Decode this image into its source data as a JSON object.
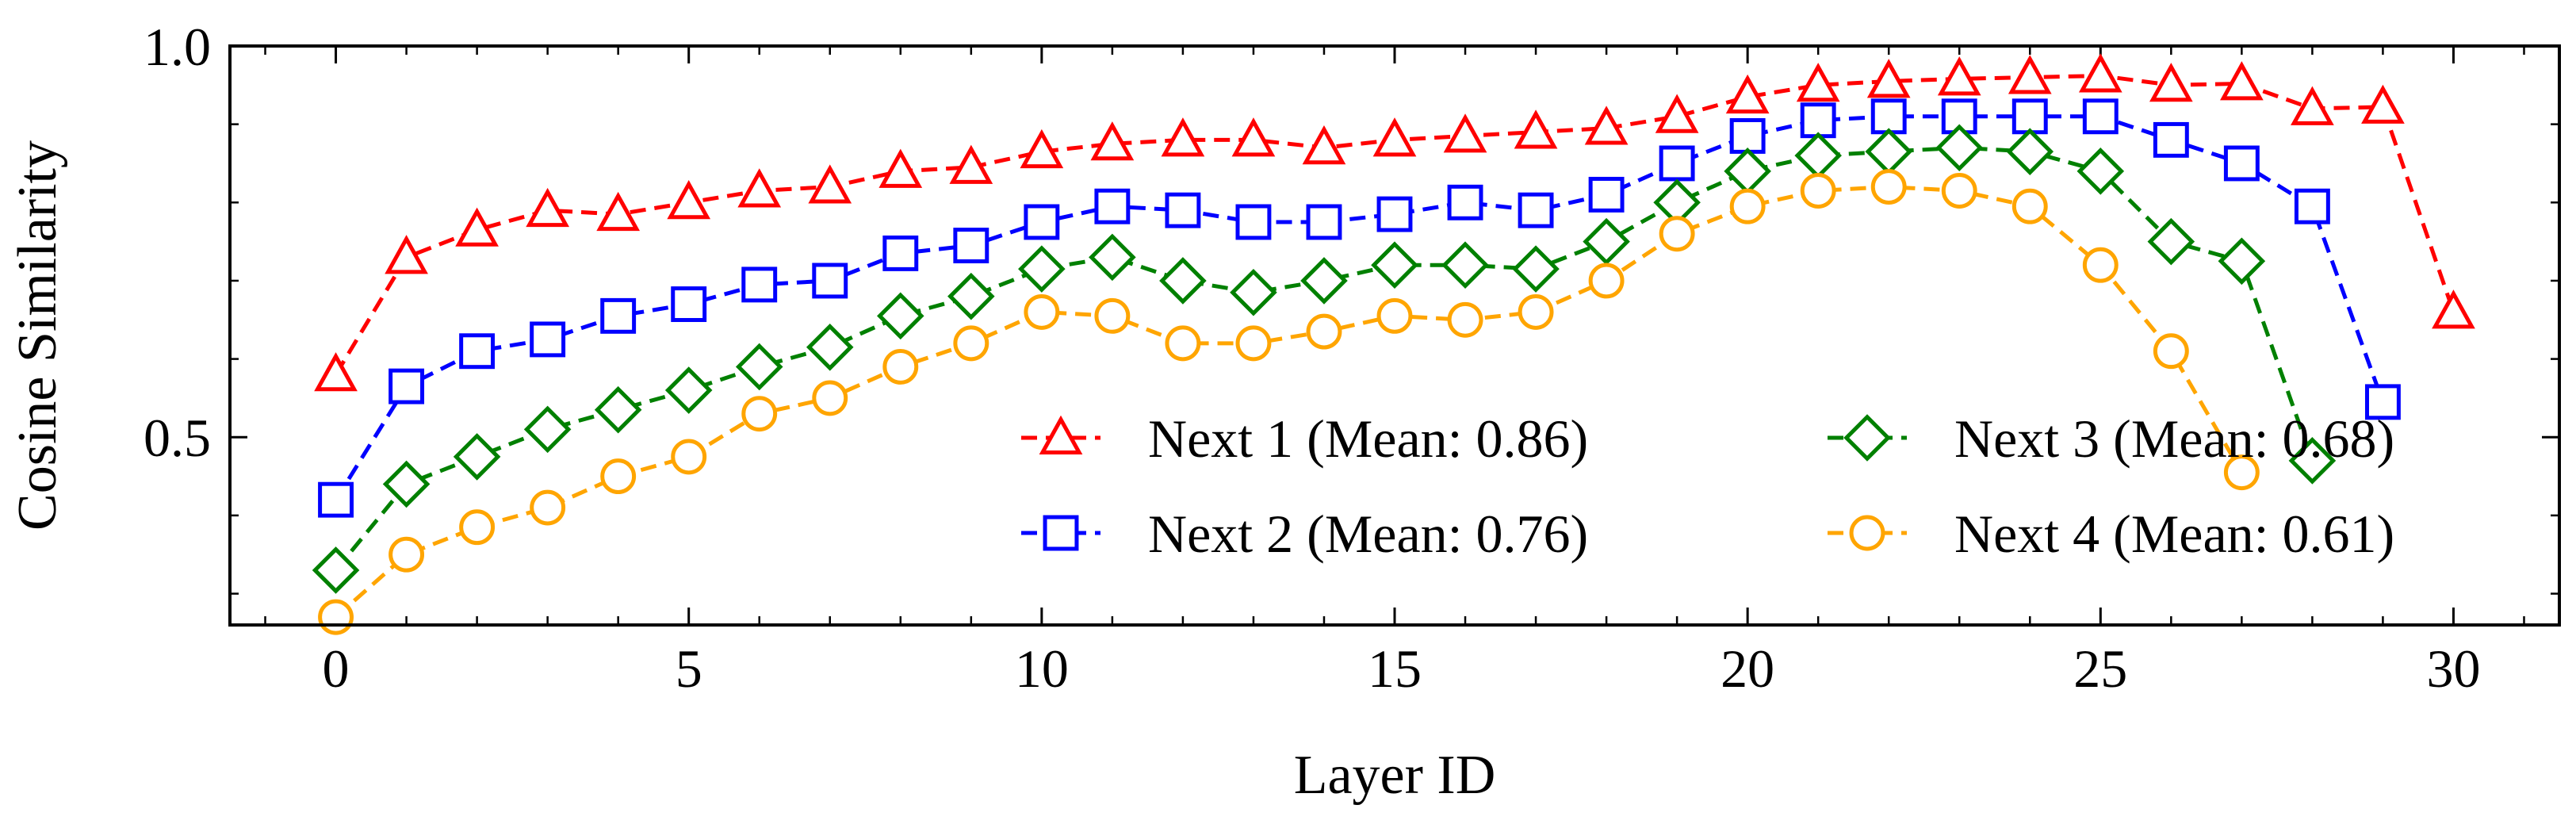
{
  "chart_data": {
    "type": "line",
    "title": "",
    "xlabel": "Layer ID",
    "ylabel": "Cosine Similarity",
    "xlim": [
      -1.5,
      31.5
    ],
    "ylim": [
      0.26,
      1.0
    ],
    "xticks": [
      0,
      5,
      10,
      15,
      20,
      25,
      30
    ],
    "xtick_labels": [
      "0",
      "5",
      "10",
      "15",
      "20",
      "25",
      "30"
    ],
    "yticks": [
      0.5,
      1.0
    ],
    "ytick_labels": [
      "0.5",
      "1.0"
    ],
    "legend_position": "lower-right",
    "legend_columns": 2,
    "series": [
      {
        "name": "Next 1 (Mean: 0.86)",
        "color": "#ff0000",
        "marker": "triangle",
        "x": [
          0,
          1,
          2,
          3,
          4,
          5,
          6,
          7,
          8,
          9,
          10,
          11,
          12,
          13,
          14,
          15,
          16,
          17,
          18,
          19,
          20,
          21,
          22,
          23,
          24,
          25,
          26,
          27,
          28,
          29,
          30
        ],
        "values": [
          0.58,
          0.73,
          0.765,
          0.79,
          0.785,
          0.8,
          0.815,
          0.82,
          0.84,
          0.845,
          0.865,
          0.875,
          0.88,
          0.88,
          0.87,
          0.88,
          0.885,
          0.89,
          0.895,
          0.91,
          0.935,
          0.95,
          0.955,
          0.958,
          0.96,
          0.962,
          0.95,
          0.952,
          0.92,
          0.922,
          0.66
        ]
      },
      {
        "name": "Next 2 (Mean: 0.76)",
        "color": "#0000ff",
        "marker": "square",
        "x": [
          0,
          1,
          2,
          3,
          4,
          5,
          6,
          7,
          8,
          9,
          10,
          11,
          12,
          13,
          14,
          15,
          16,
          17,
          18,
          19,
          20,
          21,
          22,
          23,
          24,
          25,
          26,
          27,
          28,
          29
        ],
        "values": [
          0.42,
          0.565,
          0.61,
          0.625,
          0.655,
          0.67,
          0.695,
          0.7,
          0.735,
          0.745,
          0.775,
          0.795,
          0.79,
          0.775,
          0.775,
          0.785,
          0.8,
          0.79,
          0.81,
          0.85,
          0.885,
          0.905,
          0.91,
          0.91,
          0.91,
          0.91,
          0.88,
          0.85,
          0.795,
          0.545
        ]
      },
      {
        "name": "Next 3 (Mean: 0.68)",
        "color": "#008000",
        "marker": "diamond",
        "x": [
          0,
          1,
          2,
          3,
          4,
          5,
          6,
          7,
          8,
          9,
          10,
          11,
          12,
          13,
          14,
          15,
          16,
          17,
          18,
          19,
          20,
          21,
          22,
          23,
          24,
          25,
          26,
          27,
          28
        ],
        "values": [
          0.33,
          0.44,
          0.475,
          0.51,
          0.535,
          0.56,
          0.59,
          0.615,
          0.655,
          0.68,
          0.715,
          0.73,
          0.7,
          0.685,
          0.7,
          0.72,
          0.72,
          0.715,
          0.75,
          0.8,
          0.84,
          0.86,
          0.865,
          0.87,
          0.865,
          0.84,
          0.75,
          0.725,
          0.47
        ]
      },
      {
        "name": "Next 4 (Mean: 0.61)",
        "color": "#ffa500",
        "marker": "circle",
        "x": [
          0,
          1,
          2,
          3,
          4,
          5,
          6,
          7,
          8,
          9,
          10,
          11,
          12,
          13,
          14,
          15,
          16,
          17,
          18,
          19,
          20,
          21,
          22,
          23,
          24,
          25,
          26,
          27
        ],
        "values": [
          0.27,
          0.35,
          0.385,
          0.41,
          0.45,
          0.475,
          0.53,
          0.55,
          0.59,
          0.62,
          0.66,
          0.655,
          0.62,
          0.62,
          0.635,
          0.655,
          0.65,
          0.66,
          0.7,
          0.76,
          0.795,
          0.815,
          0.82,
          0.815,
          0.795,
          0.72,
          0.61,
          0.455
        ]
      }
    ]
  }
}
